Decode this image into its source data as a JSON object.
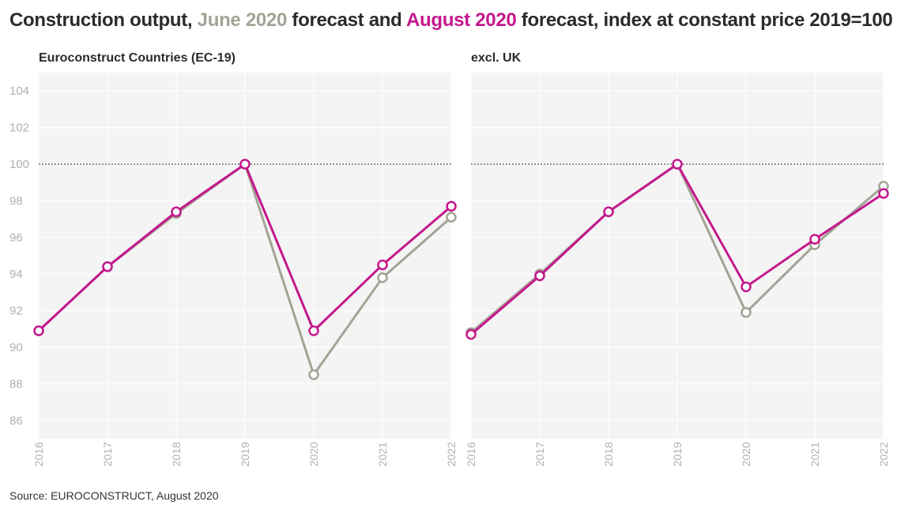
{
  "title": {
    "prefix": "Construction output, ",
    "june": "June 2020",
    "mid": " forecast and ",
    "august": "August 2020",
    "suffix": " forecast, index at constant price 2019=100"
  },
  "source": "Source: EUROCONSTRUCT, August 2020",
  "colors": {
    "june": "#a3a396",
    "august": "#c4188c",
    "panel_bg": "#f4f4f4",
    "grid": "#ffffff",
    "reference": "#555555"
  },
  "chart_data": [
    {
      "type": "line",
      "panel_title": "Euroconstruct Countries (EC-19)",
      "categories": [
        "2016",
        "2017",
        "2018",
        "2019",
        "2020",
        "2021",
        "2022"
      ],
      "yticks": [
        86,
        88,
        90,
        92,
        94,
        96,
        98,
        100,
        102,
        104
      ],
      "ylim": [
        85,
        105
      ],
      "reference_line": 100,
      "series": [
        {
          "name": "June 2020",
          "values": [
            90.9,
            94.4,
            97.3,
            100,
            88.5,
            93.8,
            97.1
          ]
        },
        {
          "name": "August 2020",
          "values": [
            90.9,
            94.4,
            97.4,
            100,
            90.9,
            94.5,
            97.7
          ]
        }
      ]
    },
    {
      "type": "line",
      "panel_title": "excl. UK",
      "categories": [
        "2016",
        "2017",
        "2018",
        "2019",
        "2020",
        "2021",
        "2022"
      ],
      "yticks": [
        86,
        88,
        90,
        92,
        94,
        96,
        98,
        100,
        102,
        104
      ],
      "ylim": [
        85,
        105
      ],
      "reference_line": 100,
      "series": [
        {
          "name": "June 2020",
          "values": [
            90.8,
            94.0,
            97.4,
            100,
            91.9,
            95.6,
            98.8
          ]
        },
        {
          "name": "August 2020",
          "values": [
            90.7,
            93.9,
            97.4,
            100,
            93.3,
            95.9,
            98.4
          ]
        }
      ]
    }
  ]
}
